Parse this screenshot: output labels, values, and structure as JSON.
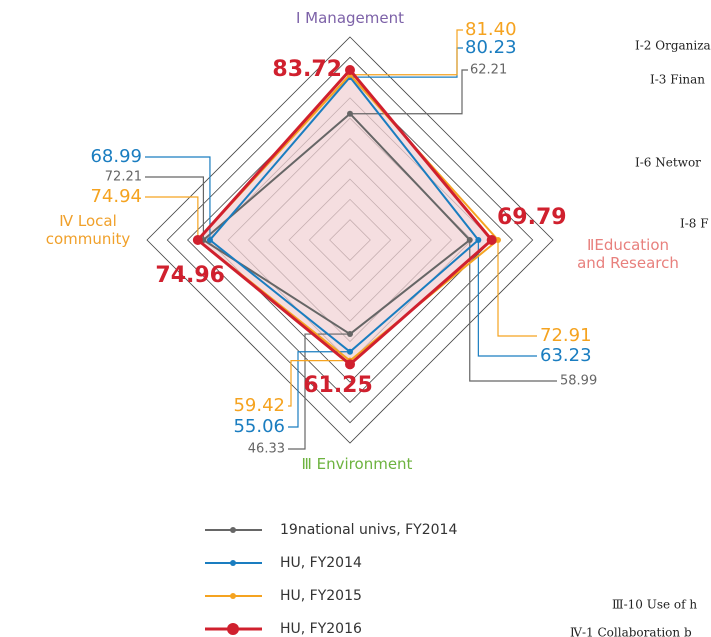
{
  "chart_data": {
    "type": "radar",
    "categories": [
      "Ⅰ Management",
      "ⅡEducation\nand Research",
      "Ⅲ Environment",
      "Ⅳ Local\ncommunity"
    ],
    "category_colors": [
      "#7d62a8",
      "#e8807d",
      "#6db33f",
      "#f0a02a"
    ],
    "rlim": [
      0,
      100
    ],
    "rticks": [
      10,
      20,
      30,
      40,
      50,
      60,
      70,
      80,
      90,
      100
    ],
    "grid": true,
    "series": [
      {
        "name": "19national univs, FY2014",
        "color": "#666666",
        "values": [
          62.21,
          58.99,
          46.33,
          72.21
        ],
        "value_labels": [
          "62.21",
          "58.99",
          "46.33",
          "72.21"
        ]
      },
      {
        "name": "HU, FY2014",
        "color": "#1a7dc0",
        "values": [
          80.23,
          63.23,
          55.06,
          68.99
        ],
        "value_labels": [
          "80.23",
          "63.23",
          "55.06",
          "68.99"
        ]
      },
      {
        "name": "HU, FY2015",
        "color": "#f5a320",
        "values": [
          81.4,
          72.91,
          59.42,
          74.94
        ],
        "value_labels": [
          "81.40",
          "72.91",
          "59.42",
          "74.94"
        ]
      },
      {
        "name": "HU, FY2016",
        "color": "#d0202e",
        "values": [
          83.72,
          69.79,
          61.25,
          74.96
        ],
        "value_labels": [
          "83.72",
          "69.79",
          "61.25",
          "74.96"
        ],
        "fill": "#f2d3d6"
      }
    ],
    "side_labels": [
      "I-2 Organiza",
      "I-3 Finan",
      "I-6 Networ",
      "I-8 F",
      "Ⅲ-10 Use of h",
      "Ⅳ-1 Collaboration b"
    ]
  }
}
